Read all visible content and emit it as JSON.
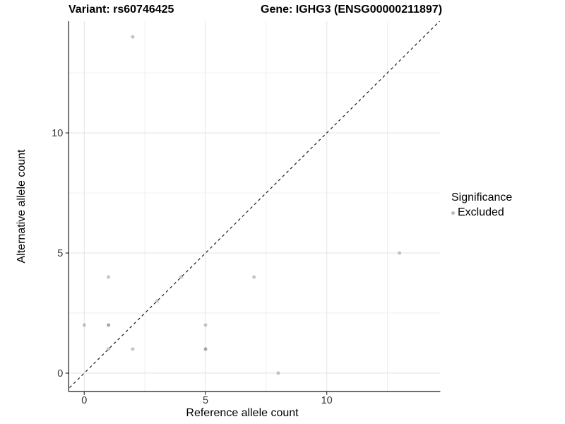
{
  "figure": {
    "title_left": "Variant: rs60746425",
    "title_right": "Gene: IGHG3 (ENSG00000211897)",
    "xlabel": "Reference allele count",
    "ylabel": "Alternative allele count",
    "legend": {
      "title": "Significance",
      "items": [
        {
          "label": "Excluded"
        }
      ]
    }
  },
  "chart_data": {
    "type": "scatter",
    "title": "Variant: rs60746425 — Gene: IGHG3 (ENSG00000211897)",
    "xlabel": "Reference allele count",
    "ylabel": "Alternative allele count",
    "xlim": [
      -0.64,
      14.68
    ],
    "ylim": [
      -0.77,
      14.65
    ],
    "x_ticks": [
      0,
      5,
      10
    ],
    "y_ticks": [
      0,
      5,
      10
    ],
    "x_minor_ticks": [
      2.5,
      7.5,
      12.5
    ],
    "y_minor_ticks": [
      2.5,
      7.5,
      12.5
    ],
    "grid": true,
    "legend_position": "right",
    "legend_title": "Significance",
    "series": [
      {
        "name": "Excluded",
        "color": "#8c8c8c",
        "opacity": 0.5,
        "points": [
          {
            "x": 0,
            "y": 2,
            "n": 1
          },
          {
            "x": 1,
            "y": 1,
            "n": 1
          },
          {
            "x": 1,
            "y": 2,
            "n": 2
          },
          {
            "x": 1,
            "y": 4,
            "n": 1
          },
          {
            "x": 2,
            "y": 1,
            "n": 1
          },
          {
            "x": 2,
            "y": 14,
            "n": 1
          },
          {
            "x": 3,
            "y": 3,
            "n": 1
          },
          {
            "x": 4,
            "y": 4,
            "n": 1
          },
          {
            "x": 5,
            "y": 1,
            "n": 2
          },
          {
            "x": 5,
            "y": 2,
            "n": 1
          },
          {
            "x": 7,
            "y": 4,
            "n": 1
          },
          {
            "x": 8,
            "y": 0,
            "n": 1
          },
          {
            "x": 13,
            "y": 5,
            "n": 1
          }
        ]
      }
    ],
    "identity_line": {
      "type": "y=x",
      "style": "dashed",
      "from": -0.77,
      "to": 14.7
    }
  },
  "colors": {
    "background": "#ffffff",
    "grid_major": "#e3e3e3",
    "grid_minor": "#efefef",
    "axis_line": "#2b2b2b",
    "tick": "#333333",
    "tick_label": "#333333",
    "point": "#8c8c8c",
    "identity_line": "#1a1a1a"
  }
}
